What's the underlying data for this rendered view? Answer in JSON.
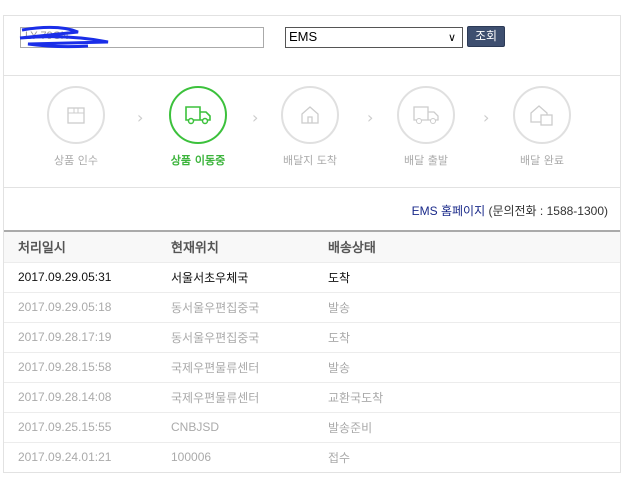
{
  "search": {
    "tracking_number": "LY        79CN",
    "carrier": "EMS",
    "submit_label": "조회"
  },
  "steps": [
    {
      "label": "상품 인수",
      "icon": "box-icon",
      "active": false
    },
    {
      "label": "상품 이동중",
      "icon": "truck-icon",
      "active": true
    },
    {
      "label": "배달지 도착",
      "icon": "house-icon",
      "active": false
    },
    {
      "label": "배달 출발",
      "icon": "truck-icon",
      "active": false
    },
    {
      "label": "배달 완료",
      "icon": "house-box-icon",
      "active": false
    }
  ],
  "colors": {
    "active": "#3cc13c",
    "button": "#3e4f70",
    "link": "#1a2a8a"
  },
  "contact": {
    "link": "EMS 홈페이지",
    "phone": " (문의전화 : 1588-1300)"
  },
  "table": {
    "headers": [
      "처리일시",
      "현재위치",
      "배송상태"
    ],
    "rows": [
      [
        "2017.09.29.05:31",
        "서울서초우체국",
        "도착"
      ],
      [
        "2017.09.29.05:18",
        "동서울우편집중국",
        "발송"
      ],
      [
        "2017.09.28.17:19",
        "동서울우편집중국",
        "도착"
      ],
      [
        "2017.09.28.15:58",
        "국제우편물류센터",
        "발송"
      ],
      [
        "2017.09.28.14:08",
        "국제우편물류센터",
        "교환국도착"
      ],
      [
        "2017.09.25.15:55",
        "CNBJSD",
        "발송준비"
      ],
      [
        "2017.09.24.01:21",
        "100006",
        "접수"
      ]
    ]
  }
}
